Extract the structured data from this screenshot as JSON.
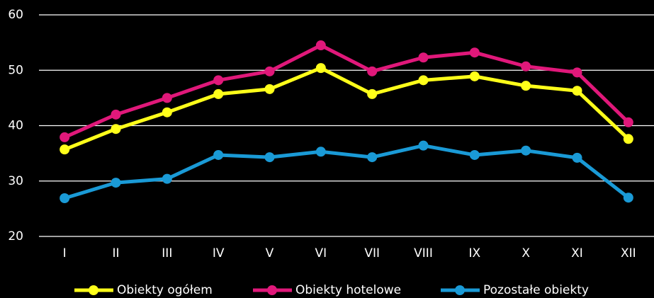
{
  "chart_data": {
    "type": "line",
    "categories": [
      "I",
      "II",
      "III",
      "IV",
      "V",
      "VI",
      "VII",
      "VIII",
      "IX",
      "X",
      "XI",
      "XII"
    ],
    "series": [
      {
        "name": "Obiekty ogółem",
        "color": "#ffff1a",
        "values": [
          35.7,
          39.4,
          42.4,
          45.7,
          46.6,
          50.4,
          45.7,
          48.2,
          48.9,
          47.2,
          46.3,
          37.6
        ]
      },
      {
        "name": "Obiekty hotelowe",
        "color": "#e0187a",
        "values": [
          37.9,
          42.0,
          45.0,
          48.2,
          49.8,
          54.5,
          49.8,
          52.3,
          53.2,
          50.7,
          49.6,
          40.6
        ]
      },
      {
        "name": "Pozostałe obiekty",
        "color": "#1a9ad6",
        "values": [
          26.9,
          29.7,
          30.4,
          34.7,
          34.3,
          35.3,
          34.3,
          36.4,
          34.7,
          35.5,
          34.2,
          27.0
        ]
      }
    ],
    "ylim": [
      20,
      60
    ],
    "yticks": [
      20,
      30,
      40,
      50,
      60
    ],
    "grid": true,
    "legend": "bottom"
  }
}
